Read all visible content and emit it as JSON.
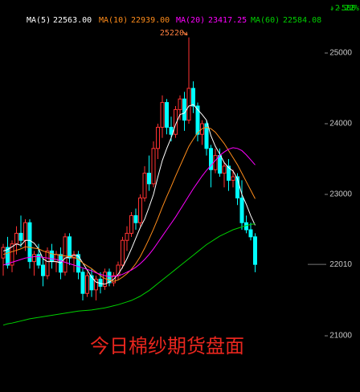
{
  "chart_data": {
    "type": "candlestick",
    "change": {
      "arrow": "↓",
      "value": "-500",
      "percent": "-2.22%"
    },
    "caption": "今日棉纱期货盘面",
    "annotation": {
      "value": 25220,
      "label": "25220"
    },
    "last_price": 22010,
    "ylim": [
      20205,
      25750
    ],
    "yticks": [
      21000,
      23000,
      24000,
      25000
    ],
    "up_color": "#ff3232",
    "down_color": "#00ffff",
    "candles": {
      "open": [
        22100,
        22250,
        22000,
        22300,
        22450,
        22350,
        22600,
        22050,
        22150,
        22000,
        21850,
        22200,
        22050,
        22150,
        21900,
        22400,
        22100,
        22150,
        21900,
        21600,
        21850,
        21650,
        21800,
        21700,
        21900,
        21750,
        21850,
        22000,
        22350,
        22450,
        22700,
        22600,
        22950,
        23300,
        23150,
        23650,
        23950,
        24300,
        23950,
        23850,
        24200,
        24350,
        24050,
        24500,
        24250,
        23850,
        24000,
        23650,
        23350,
        23550,
        23300,
        23400,
        23200,
        23250,
        22950,
        22600,
        22500,
        22400
      ],
      "high": [
        22300,
        22400,
        22350,
        22550,
        22700,
        22650,
        22650,
        22200,
        22300,
        22100,
        22250,
        22300,
        22200,
        22250,
        22450,
        22450,
        22200,
        22200,
        21950,
        21900,
        21950,
        21850,
        21900,
        21950,
        21950,
        21900,
        22050,
        22400,
        22550,
        22750,
        22800,
        23000,
        23400,
        23550,
        23750,
        24000,
        24400,
        24350,
        24100,
        24250,
        24400,
        24450,
        25220,
        24600,
        24300,
        24050,
        24050,
        23700,
        23650,
        23650,
        23450,
        23500,
        23350,
        23300,
        23200,
        22700,
        22600,
        22450
      ],
      "low": [
        21850,
        21950,
        21900,
        22150,
        22250,
        22200,
        21950,
        21850,
        21950,
        21700,
        21800,
        21950,
        21900,
        21800,
        21850,
        22000,
        21900,
        21800,
        21500,
        21550,
        21550,
        21500,
        21600,
        21650,
        21700,
        21700,
        21800,
        21950,
        22200,
        22400,
        22500,
        22550,
        22900,
        23050,
        23100,
        23500,
        23800,
        23850,
        23750,
        23800,
        24050,
        23900,
        24000,
        24150,
        23750,
        23700,
        23550,
        23100,
        23300,
        23250,
        23100,
        23050,
        23100,
        22850,
        22500,
        22450,
        22350,
        21900
      ],
      "close": [
        22250,
        22000,
        22300,
        22450,
        22350,
        22600,
        22050,
        22150,
        22000,
        21850,
        22200,
        22050,
        22150,
        21900,
        22400,
        22100,
        22150,
        21900,
        21600,
        21850,
        21650,
        21800,
        21700,
        21900,
        21750,
        21850,
        22000,
        22350,
        22450,
        22700,
        22600,
        22950,
        23300,
        23150,
        23650,
        23950,
        24300,
        23950,
        23850,
        24200,
        24350,
        24050,
        24500,
        24250,
        23850,
        24000,
        23650,
        23350,
        23550,
        23300,
        23400,
        23200,
        23250,
        22950,
        22600,
        22500,
        22400,
        22010
      ]
    },
    "series": [
      {
        "name": "MA(5)",
        "color": "#ffffff",
        "legend_value": {
          "value": 22563,
          "label": "22563.00"
        },
        "values": [
          22200,
          22220,
          22260,
          22300,
          22280,
          22350,
          22350,
          22310,
          22230,
          22090,
          22050,
          22050,
          22050,
          22030,
          22100,
          22120,
          22140,
          22130,
          22030,
          21930,
          21830,
          21760,
          21740,
          21730,
          21760,
          21800,
          21870,
          21970,
          22090,
          22230,
          22380,
          22530,
          22650,
          22820,
          23000,
          23250,
          23480,
          23650,
          23800,
          23990,
          24130,
          24150,
          24250,
          24270,
          24200,
          24130,
          24050,
          23830,
          23680,
          23570,
          23450,
          23380,
          23330,
          23220,
          23000,
          22860,
          22700,
          22563
        ]
      },
      {
        "name": "MA(10)",
        "color": "#ff8c1a",
        "legend_value": {
          "value": 22939,
          "label": "22939.00"
        },
        "values": [
          22150,
          22170,
          22190,
          22210,
          22230,
          22260,
          22250,
          22240,
          22230,
          22200,
          22180,
          22160,
          22150,
          22140,
          22130,
          22120,
          22110,
          22080,
          22030,
          21990,
          21950,
          21900,
          21850,
          21810,
          21790,
          21770,
          21790,
          21830,
          21880,
          21940,
          22020,
          22120,
          22240,
          22370,
          22510,
          22660,
          22820,
          22970,
          23110,
          23260,
          23400,
          23540,
          23680,
          23780,
          23870,
          23930,
          23950,
          23930,
          23880,
          23800,
          23720,
          23620,
          23520,
          23420,
          23300,
          23180,
          23060,
          22939
        ]
      },
      {
        "name": "MA(20)",
        "color": "#ff00ff",
        "legend_value": {
          "value": 23417.25,
          "label": "23417.25"
        },
        "values": [
          22000,
          22020,
          22040,
          22060,
          22080,
          22100,
          22110,
          22120,
          22120,
          22110,
          22100,
          22090,
          22080,
          22060,
          22040,
          22020,
          22000,
          21980,
          21960,
          21940,
          21920,
          21890,
          21870,
          21850,
          21840,
          21840,
          21850,
          21870,
          21900,
          21930,
          21970,
          22020,
          22080,
          22150,
          22230,
          22320,
          22410,
          22500,
          22590,
          22680,
          22780,
          22880,
          22980,
          23080,
          23170,
          23260,
          23340,
          23410,
          23480,
          23550,
          23600,
          23640,
          23660,
          23650,
          23620,
          23560,
          23490,
          23417.25
        ]
      },
      {
        "name": "MA(60)",
        "color": "#00d000",
        "legend_value": {
          "value": 22584.08,
          "label": "22584.08"
        },
        "values": [
          21150,
          21170,
          21180,
          21195,
          21210,
          21225,
          21240,
          21250,
          21260,
          21270,
          21280,
          21290,
          21300,
          21310,
          21320,
          21330,
          21340,
          21350,
          21355,
          21360,
          21365,
          21375,
          21385,
          21395,
          21410,
          21425,
          21440,
          21460,
          21480,
          21500,
          21530,
          21560,
          21600,
          21640,
          21690,
          21740,
          21790,
          21840,
          21890,
          21940,
          21990,
          22040,
          22090,
          22140,
          22190,
          22240,
          22290,
          22330,
          22370,
          22410,
          22440,
          22470,
          22500,
          22520,
          22540,
          22560,
          22575,
          22584.08
        ]
      }
    ]
  }
}
